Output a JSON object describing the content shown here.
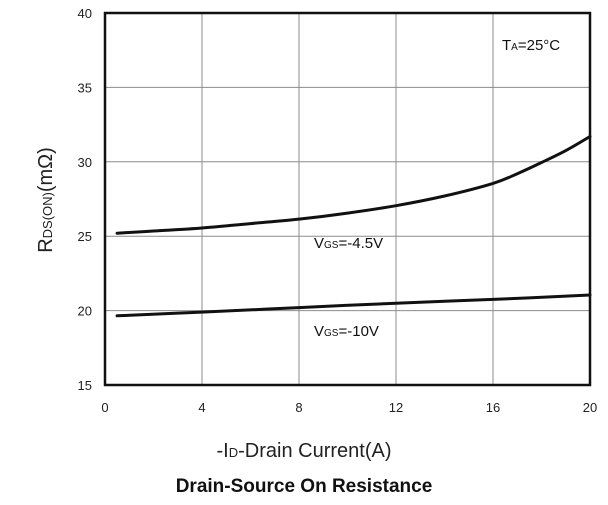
{
  "chart_data": {
    "type": "line",
    "title": "Drain-Source On Resistance",
    "xlabel": {
      "prefix": "-I",
      "sub": "D",
      "rest": "-Drain Current(A)"
    },
    "ylabel": {
      "prefix": "R",
      "sub": "DS(ON)",
      "rest": "(mΩ)"
    },
    "xlim": [
      0,
      20
    ],
    "ylim": [
      15,
      40
    ],
    "xticks": [
      0,
      4,
      8,
      12,
      16,
      20
    ],
    "yticks": [
      15,
      20,
      25,
      30,
      35,
      40
    ],
    "grid": true,
    "annotation": {
      "prefix": "T",
      "sub": "A",
      "rest": "=25°C"
    },
    "series": [
      {
        "name": "VGS=-4.5V",
        "label": {
          "prefix": "V",
          "sub": "GS",
          "rest": "=-4.5V"
        },
        "x": [
          0.5,
          2,
          4,
          6,
          8,
          10,
          12,
          14,
          16,
          17,
          18,
          19,
          20
        ],
        "y": [
          25.2,
          25.35,
          25.55,
          25.85,
          26.15,
          26.55,
          27.05,
          27.7,
          28.55,
          29.2,
          29.95,
          30.75,
          31.7
        ]
      },
      {
        "name": "VGS=-10V",
        "label": {
          "prefix": "V",
          "sub": "GS",
          "rest": "=-10V"
        },
        "x": [
          0.5,
          4,
          8,
          12,
          16,
          20
        ],
        "y": [
          19.65,
          19.9,
          20.2,
          20.5,
          20.75,
          21.05
        ]
      }
    ]
  }
}
